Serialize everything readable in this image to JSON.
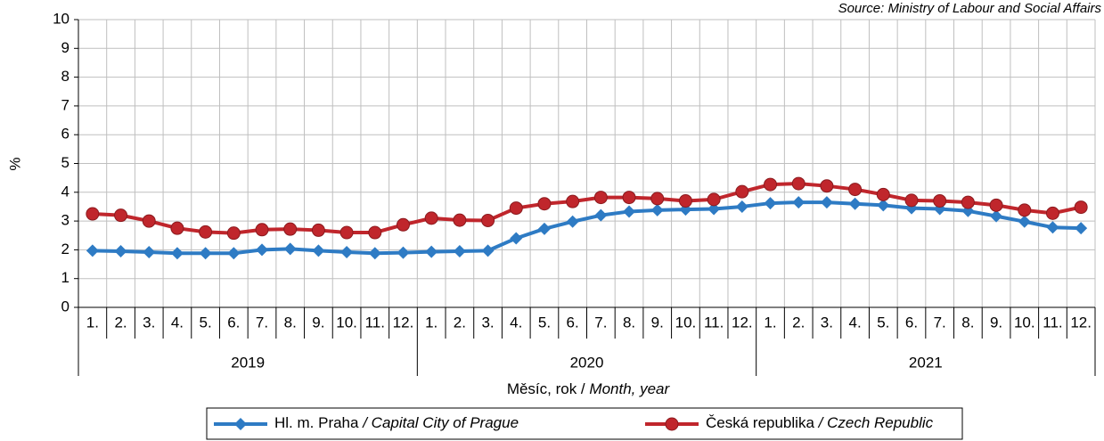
{
  "chart_data": {
    "type": "line",
    "source": "Source: Ministry of Labour and Social Affairs",
    "y_label": "%",
    "x_label": "Měsíc, rok /",
    "x_label_en": "Month, year",
    "categories": [
      "1.",
      "2.",
      "3.",
      "4.",
      "5.",
      "6.",
      "7.",
      "8.",
      "9.",
      "10.",
      "11.",
      "12.",
      "1.",
      "2.",
      "3.",
      "4.",
      "5.",
      "6.",
      "7.",
      "8.",
      "9.",
      "10.",
      "11.",
      "12.",
      "1.",
      "2.",
      "3.",
      "4.",
      "5.",
      "6.",
      "7.",
      "8.",
      "9.",
      "10.",
      "11.",
      "12."
    ],
    "years": [
      "2019",
      "2020",
      "2021"
    ],
    "ylim": [
      0,
      10
    ],
    "yticks": [
      0,
      1,
      2,
      3,
      4,
      5,
      6,
      7,
      8,
      9,
      10
    ],
    "grid": true,
    "series": [
      {
        "name": "Hl. m. Praha",
        "name_en": "/ Capital City of Prague",
        "color": "#2e7bc4",
        "marker": "diamond",
        "values": [
          1.97,
          1.95,
          1.92,
          1.88,
          1.88,
          1.88,
          2.0,
          2.03,
          1.97,
          1.92,
          1.88,
          1.9,
          1.93,
          1.95,
          1.97,
          2.4,
          2.73,
          2.98,
          3.2,
          3.33,
          3.38,
          3.4,
          3.42,
          3.5,
          3.62,
          3.65,
          3.65,
          3.6,
          3.55,
          3.45,
          3.42,
          3.35,
          3.17,
          2.98,
          2.78,
          2.75
        ]
      },
      {
        "name": "Česká republika",
        "name_en": "/ Czech Republic",
        "color": "#c0262c",
        "marker": "circle",
        "values": [
          3.25,
          3.2,
          3.0,
          2.75,
          2.62,
          2.58,
          2.7,
          2.72,
          2.68,
          2.6,
          2.6,
          2.87,
          3.1,
          3.03,
          3.02,
          3.45,
          3.6,
          3.68,
          3.82,
          3.82,
          3.78,
          3.7,
          3.75,
          4.02,
          4.27,
          4.3,
          4.22,
          4.1,
          3.92,
          3.72,
          3.7,
          3.65,
          3.55,
          3.38,
          3.27,
          3.48
        ]
      }
    ]
  }
}
